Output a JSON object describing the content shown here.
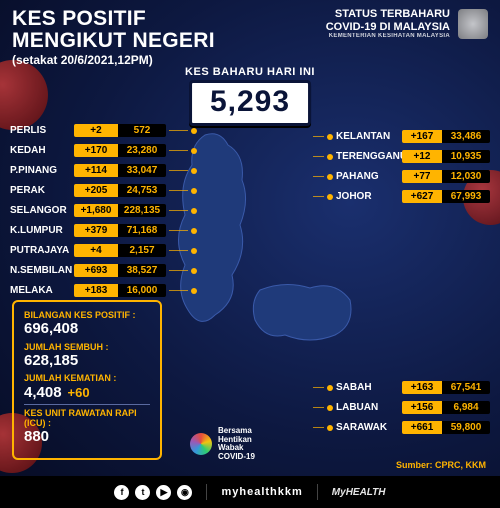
{
  "header": {
    "title_line1": "KES POSITIF",
    "title_line2": "MENGIKUT NEGERI",
    "as_of": "(setakat 20/6/2021,12PM)",
    "status_line1": "STATUS TERBAHARU",
    "status_line2": "COVID-19 DI MALAYSIA",
    "ministry": "KEMENTERIAN KESIHATAN MALAYSIA"
  },
  "new_cases": {
    "label": "KES BAHARU HARI INI",
    "value": "5,293"
  },
  "colors": {
    "accent": "#ffb400",
    "chip_bg": "#000000",
    "chip_text": "#ffb400",
    "plus_bg": "#ffb400",
    "plus_text": "#000000"
  },
  "states_left": [
    {
      "name": "PERLIS",
      "plus": "+2",
      "total": "572"
    },
    {
      "name": "KEDAH",
      "plus": "+170",
      "total": "23,280"
    },
    {
      "name": "P.PINANG",
      "plus": "+114",
      "total": "33,047"
    },
    {
      "name": "PERAK",
      "plus": "+205",
      "total": "24,753"
    },
    {
      "name": "SELANGOR",
      "plus": "+1,680",
      "total": "228,135"
    },
    {
      "name": "K.LUMPUR",
      "plus": "+379",
      "total": "71,168"
    },
    {
      "name": "PUTRAJAYA",
      "plus": "+4",
      "total": "2,157"
    },
    {
      "name": "N.SEMBILAN",
      "plus": "+693",
      "total": "38,527"
    },
    {
      "name": "MELAKA",
      "plus": "+183",
      "total": "16,000"
    }
  ],
  "states_right_top": [
    {
      "name": "KELANTAN",
      "plus": "+167",
      "total": "33,486"
    },
    {
      "name": "TERENGGANU",
      "plus": "+12",
      "total": "10,935"
    },
    {
      "name": "PAHANG",
      "plus": "+77",
      "total": "12,030"
    },
    {
      "name": "JOHOR",
      "plus": "+627",
      "total": "67,993"
    }
  ],
  "states_right_bottom": [
    {
      "name": "SABAH",
      "plus": "+163",
      "total": "67,541"
    },
    {
      "name": "LABUAN",
      "plus": "+156",
      "total": "6,984"
    },
    {
      "name": "SARAWAK",
      "plus": "+661",
      "total": "59,800"
    }
  ],
  "summary": {
    "positive_label": "BILANGAN KES POSITIF :",
    "positive_value": "696,408",
    "recovered_label": "JUMLAH SEMBUH :",
    "recovered_value": "628,185",
    "deaths_label": "JUMLAH KEMATIAN :",
    "deaths_value": "4,408",
    "deaths_plus": "+60",
    "icu_label": "KES UNIT RAWATAN RAPI (ICU) :",
    "icu_value": "880"
  },
  "campaign": {
    "line1": "Bersama",
    "line2": "Hentikan",
    "line3": "Wabak",
    "line4": "COVID-19"
  },
  "source": "Sumber: CPRC, KKM",
  "footer": {
    "handle": "myhealthkkm",
    "brand": "MyHEALTH"
  }
}
